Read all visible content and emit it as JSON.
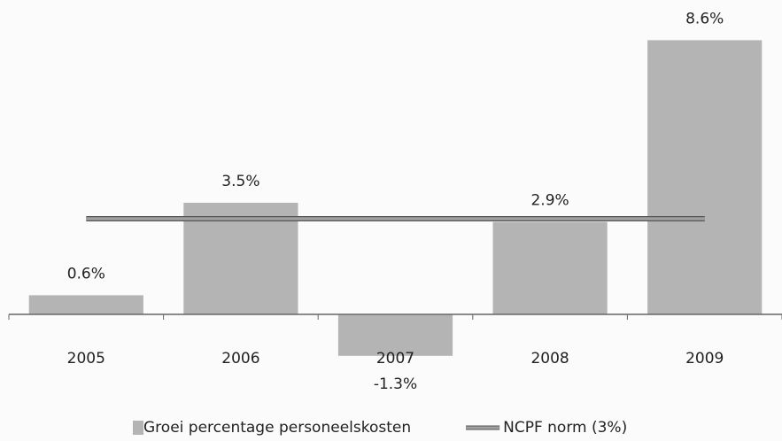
{
  "chart_data": {
    "type": "bar",
    "categories": [
      "2005",
      "2006",
      "2007",
      "2008",
      "2009"
    ],
    "series": [
      {
        "name": "Groei percentage personeelskosten",
        "type": "bar",
        "color": "#b4b4b4",
        "values": [
          0.6,
          3.5,
          -1.3,
          2.9,
          8.6
        ],
        "value_labels": [
          "0.6%",
          "3.5%",
          "-1.3%",
          "2.9%",
          "8.6%"
        ]
      },
      {
        "name": "NCPF norm (3%)",
        "type": "line",
        "color": "#a0a0a0",
        "values": [
          3,
          3,
          3,
          3,
          3
        ]
      }
    ],
    "ylim": [
      -2,
      9
    ],
    "legend": "bottom"
  }
}
